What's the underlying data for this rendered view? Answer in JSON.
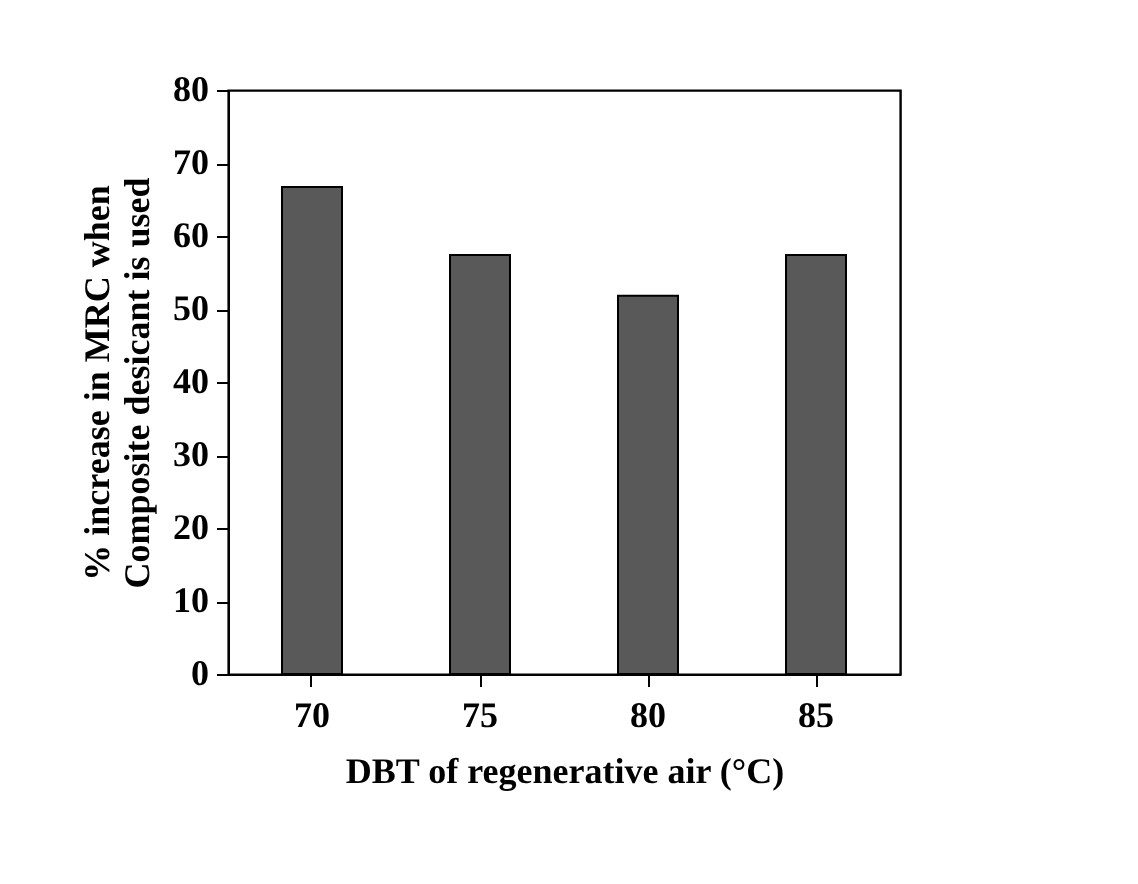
{
  "chart_data": {
    "type": "bar",
    "categories": [
      "70",
      "75",
      "80",
      "85"
    ],
    "values": [
      66.7,
      57.4,
      51.8,
      57.4
    ],
    "color": "#595959",
    "xlabel": "DBT of regenerative air (°C)",
    "ylabel": "% increase in MRC when\nComposite desicant is used",
    "ylim": [
      0,
      80
    ],
    "yticks": [
      0,
      10,
      20,
      30,
      40,
      50,
      60,
      70,
      80
    ],
    "grid": false
  }
}
